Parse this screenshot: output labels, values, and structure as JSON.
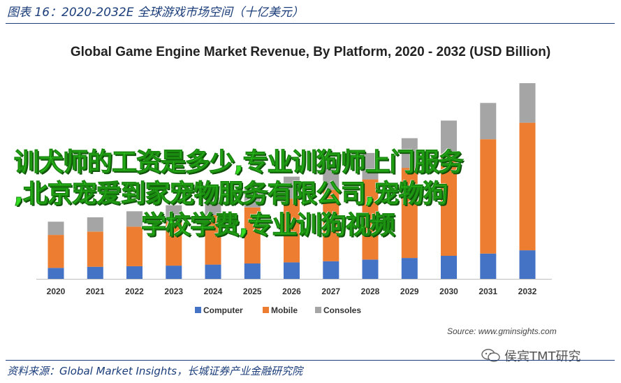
{
  "figure": {
    "header": "图表 16：2020-2032E 全球游戏市场空间（十亿美元）",
    "source_footer": "资料来源：Global Market Insights，长城证券产业金融研究院",
    "watermark": "侯宾TMT研究"
  },
  "overlay": {
    "lines": [
      "训犬师的工资是多少,专业训狗师上门服务",
      ",北京宠爱到家宠物服务有限公司,宠物狗",
      "学校学费,专业训狗视频"
    ]
  },
  "colors": {
    "computer": "#4472c4",
    "mobile": "#ed7d31",
    "consoles": "#a5a5a5",
    "overlay_text": "#33dd22",
    "header": "#1b3d7a"
  },
  "chart_data": {
    "type": "bar",
    "stacked": true,
    "title": "Global Game Engine Market Revenue, By Platform, 2020 - 2032 (USD Billion)",
    "categories": [
      "2020",
      "2021",
      "2022",
      "2023",
      "2024",
      "2025",
      "2026",
      "2027",
      "2028",
      "2029",
      "2030",
      "2031",
      "2032"
    ],
    "series": [
      {
        "name": "Computer",
        "values": [
          1.0,
          1.1,
          1.15,
          1.2,
          1.3,
          1.4,
          1.5,
          1.6,
          1.75,
          1.9,
          2.1,
          2.3,
          2.6
        ]
      },
      {
        "name": "Mobile",
        "values": [
          3.0,
          3.2,
          3.6,
          4.0,
          4.5,
          5.1,
          5.8,
          6.5,
          7.3,
          8.2,
          9.3,
          10.4,
          11.6
        ]
      },
      {
        "name": "Consoles",
        "values": [
          1.2,
          1.3,
          1.4,
          1.5,
          1.6,
          1.8,
          2.0,
          2.2,
          2.4,
          2.7,
          3.0,
          3.3,
          3.6
        ]
      }
    ],
    "ylim": [
      0,
      18.5
    ],
    "y_axis_visible": false,
    "grid": false,
    "legend": "bottom-center",
    "source": "Source: www.gminsights.com"
  }
}
